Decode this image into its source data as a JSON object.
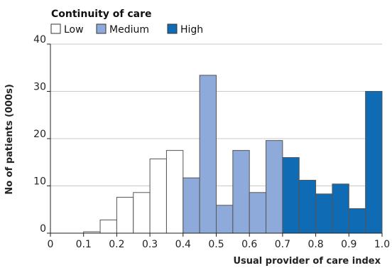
{
  "chart_data": {
    "type": "bar",
    "title": "",
    "xlabel": "Usual provider of care index",
    "ylabel": "No of patients (000s)",
    "xlim": [
      0,
      1.0
    ],
    "ylim": [
      0,
      40
    ],
    "x_ticks": [
      "0",
      "0.1",
      "0.2",
      "0.3",
      "0.4",
      "0.5",
      "0.6",
      "0.7",
      "0.8",
      "0.9",
      "1.0"
    ],
    "y_ticks": [
      "0",
      "10",
      "20",
      "30",
      "40"
    ],
    "bin_width": 0.05,
    "grid": true,
    "legend": {
      "title": "Continuity of care",
      "placement": "top-left",
      "entries": [
        {
          "label": "Low",
          "color": "#ffffff"
        },
        {
          "label": "Medium",
          "color": "#8eaadb"
        },
        {
          "label": "High",
          "color": "#0f6bb4"
        }
      ]
    },
    "bins": [
      {
        "start": 0.1,
        "end": 0.15,
        "value": 0.3,
        "group": "Low"
      },
      {
        "start": 0.15,
        "end": 0.2,
        "value": 2.8,
        "group": "Low"
      },
      {
        "start": 0.2,
        "end": 0.25,
        "value": 7.6,
        "group": "Low"
      },
      {
        "start": 0.25,
        "end": 0.3,
        "value": 8.6,
        "group": "Low"
      },
      {
        "start": 0.3,
        "end": 0.35,
        "value": 15.7,
        "group": "Low"
      },
      {
        "start": 0.35,
        "end": 0.4,
        "value": 17.5,
        "group": "Low"
      },
      {
        "start": 0.4,
        "end": 0.45,
        "value": 11.7,
        "group": "Medium"
      },
      {
        "start": 0.45,
        "end": 0.5,
        "value": 33.4,
        "group": "Medium"
      },
      {
        "start": 0.5,
        "end": 0.55,
        "value": 5.9,
        "group": "Medium"
      },
      {
        "start": 0.55,
        "end": 0.6,
        "value": 17.5,
        "group": "Medium"
      },
      {
        "start": 0.6,
        "end": 0.65,
        "value": 8.6,
        "group": "Medium"
      },
      {
        "start": 0.65,
        "end": 0.7,
        "value": 19.6,
        "group": "Medium"
      },
      {
        "start": 0.7,
        "end": 0.75,
        "value": 16.0,
        "group": "High"
      },
      {
        "start": 0.75,
        "end": 0.8,
        "value": 11.2,
        "group": "High"
      },
      {
        "start": 0.8,
        "end": 0.85,
        "value": 8.3,
        "group": "High"
      },
      {
        "start": 0.85,
        "end": 0.9,
        "value": 10.4,
        "group": "High"
      },
      {
        "start": 0.9,
        "end": 0.95,
        "value": 5.2,
        "group": "High"
      },
      {
        "start": 0.95,
        "end": 1.0,
        "value": 30.0,
        "group": "High"
      }
    ],
    "colors": {
      "grid": "#c9c9c9",
      "bar_stroke": "#555555",
      "axis": "#222222"
    }
  }
}
